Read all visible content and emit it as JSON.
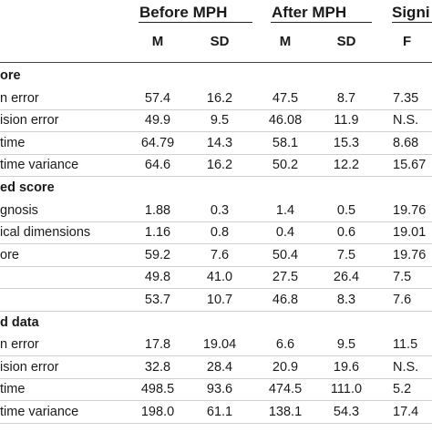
{
  "headers": {
    "before": "Before MPH",
    "after": "After MPH",
    "signif": "Signi"
  },
  "subheaders": {
    "before_m": "M",
    "before_sd": "SD",
    "after_m": "M",
    "after_sd": "SD",
    "f": "F"
  },
  "rows": [
    {
      "type": "section",
      "label": "ore"
    },
    {
      "type": "data",
      "label": "n error",
      "values": [
        "57.4",
        "16.2",
        "47.5",
        "8.7",
        "7.35"
      ]
    },
    {
      "type": "data",
      "label": "ision error",
      "values": [
        "49.9",
        "9.5",
        "46.08",
        "11.9",
        "N.S."
      ]
    },
    {
      "type": "data",
      "label": "time",
      "values": [
        "64.79",
        "14.3",
        "58.1",
        "15.3",
        "8.68"
      ]
    },
    {
      "type": "data",
      "label": "time variance",
      "values": [
        "64.6",
        "16.2",
        "50.2",
        "12.2",
        "15.67"
      ]
    },
    {
      "type": "section",
      "label": "ed score"
    },
    {
      "type": "data",
      "label": "gnosis",
      "values": [
        "1.88",
        "0.3",
        "1.4",
        "0.5",
        "19.76"
      ]
    },
    {
      "type": "data",
      "label": "ical dimensions",
      "values": [
        "1.16",
        "0.8",
        "0.4",
        "0.6",
        "19.01"
      ]
    },
    {
      "type": "data",
      "label": "ore",
      "values": [
        "59.2",
        "7.6",
        "50.4",
        "7.5",
        "19.76"
      ]
    },
    {
      "type": "data",
      "label": "",
      "values": [
        "49.8",
        "41.0",
        "27.5",
        "26.4",
        "7.5"
      ]
    },
    {
      "type": "data",
      "label": "",
      "values": [
        "53.7",
        "10.7",
        "46.8",
        "8.3",
        "7.6"
      ]
    },
    {
      "type": "section",
      "label": "d data"
    },
    {
      "type": "data",
      "label": "n error",
      "values": [
        "17.8",
        "19.04",
        "6.6",
        "9.5",
        "11.5"
      ]
    },
    {
      "type": "data",
      "label": "ision error",
      "values": [
        "32.8",
        "28.4",
        "20.9",
        "19.6",
        "N.S."
      ]
    },
    {
      "type": "data",
      "label": "time",
      "values": [
        "498.5",
        "93.6",
        "474.5",
        "111.0",
        "5.2"
      ]
    },
    {
      "type": "data",
      "label": "time variance",
      "values": [
        "198.0",
        "61.1",
        "138.1",
        "54.3",
        "17.4"
      ]
    }
  ]
}
